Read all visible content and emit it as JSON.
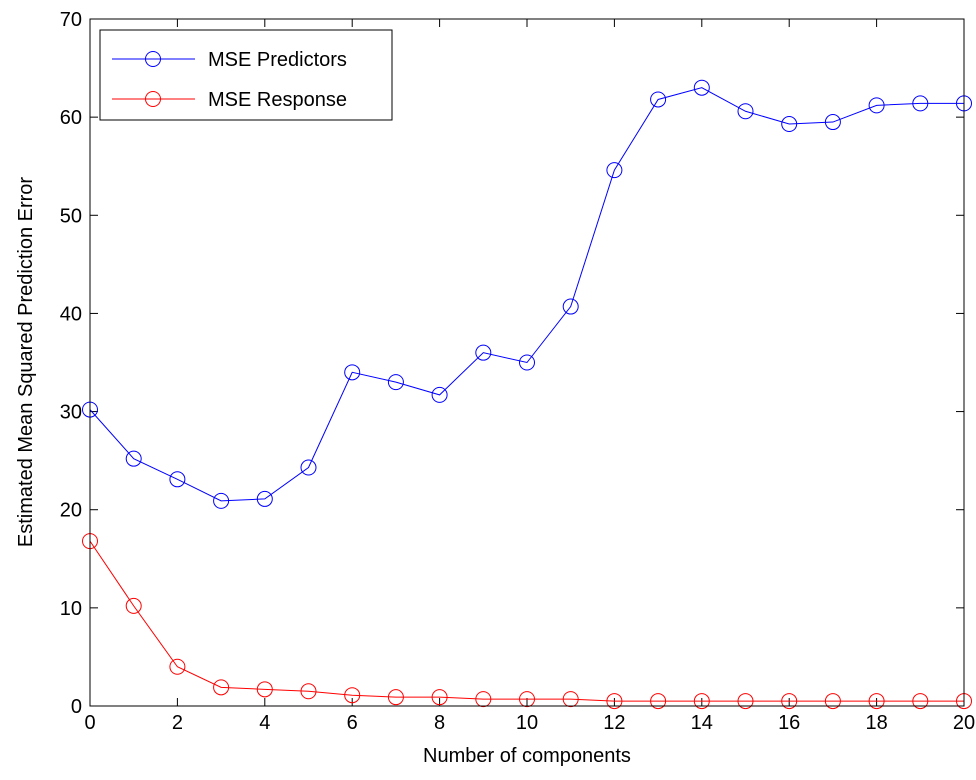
{
  "chart_data": {
    "type": "line",
    "xlabel": "Number of components",
    "ylabel": "Estimated Mean Squared Prediction Error",
    "xlim": [
      0,
      20
    ],
    "ylim": [
      0,
      70
    ],
    "xticks": [
      0,
      2,
      4,
      6,
      8,
      10,
      12,
      14,
      16,
      18,
      20
    ],
    "yticks": [
      0,
      10,
      20,
      30,
      40,
      50,
      60,
      70
    ],
    "grid": false,
    "legend_position": "top-left",
    "marker": "circle",
    "series": [
      {
        "name": "MSE Predictors",
        "color": "#0000ff",
        "x": [
          0,
          1,
          2,
          3,
          4,
          5,
          6,
          7,
          8,
          9,
          10,
          11,
          12,
          13,
          14,
          15,
          16,
          17,
          18,
          19,
          20
        ],
        "values": [
          30.2,
          25.2,
          23.1,
          20.9,
          21.1,
          24.3,
          34.0,
          33.0,
          31.7,
          36.0,
          35.0,
          40.7,
          54.6,
          61.8,
          63.0,
          60.6,
          59.3,
          59.5,
          61.2,
          61.4,
          61.4
        ]
      },
      {
        "name": "MSE Response",
        "color": "#ff0000",
        "x": [
          0,
          1,
          2,
          3,
          4,
          5,
          6,
          7,
          8,
          9,
          10,
          11,
          12,
          13,
          14,
          15,
          16,
          17,
          18,
          19,
          20
        ],
        "values": [
          16.8,
          10.2,
          4.0,
          1.9,
          1.7,
          1.5,
          1.1,
          0.9,
          0.9,
          0.7,
          0.7,
          0.7,
          0.5,
          0.5,
          0.5,
          0.5,
          0.5,
          0.5,
          0.5,
          0.5,
          0.5
        ]
      }
    ]
  }
}
